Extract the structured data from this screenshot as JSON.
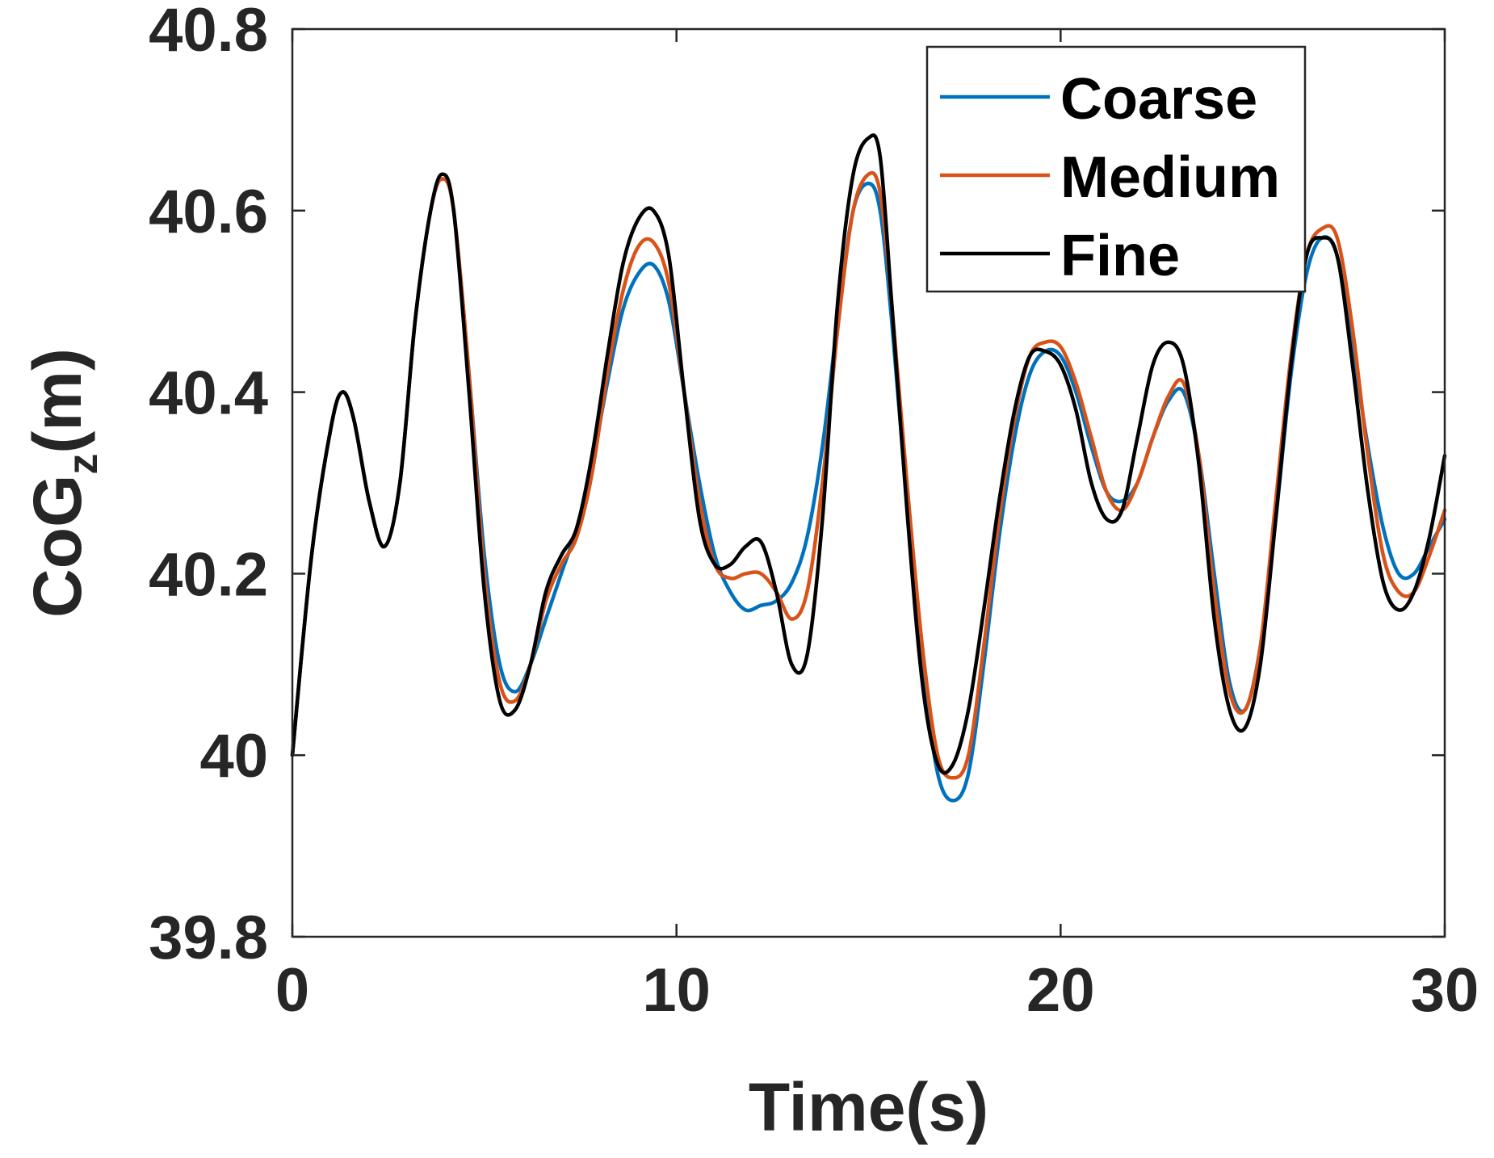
{
  "chart_data": {
    "type": "line",
    "title": "",
    "xlabel": "Time(s)",
    "ylabel": {
      "main": "CoG",
      "sub": "z",
      "unit": "(m)"
    },
    "xlim": [
      0,
      30
    ],
    "ylim": [
      39.8,
      40.8
    ],
    "xticks": [
      0,
      10,
      20,
      30
    ],
    "xtick_labels": [
      "0",
      "10",
      "20",
      "30"
    ],
    "yticks": [
      39.8,
      40.0,
      40.2,
      40.4,
      40.6,
      40.8
    ],
    "ytick_labels": [
      "39.8",
      "40",
      "40.2",
      "40.4",
      "40.6",
      "40.8"
    ],
    "grid": false,
    "legend_position": "top-right",
    "series": [
      {
        "name": "Coarse",
        "color": "#0072BD",
        "x": [
          0,
          0.5,
          1.0,
          1.3,
          1.6,
          2.0,
          2.4,
          2.8,
          3.2,
          3.6,
          3.9,
          4.2,
          4.6,
          5.0,
          5.4,
          5.8,
          6.2,
          6.6,
          7.0,
          7.4,
          7.8,
          8.2,
          8.6,
          9.0,
          9.4,
          9.8,
          10.2,
          10.6,
          11.0,
          11.4,
          11.8,
          12.2,
          12.6,
          13.0,
          13.4,
          13.8,
          14.2,
          14.6,
          15.0,
          15.3,
          15.6,
          16.0,
          16.4,
          16.8,
          17.2,
          17.6,
          18.0,
          18.4,
          18.8,
          19.2,
          19.6,
          20.0,
          20.4,
          20.8,
          21.2,
          21.6,
          22.0,
          22.4,
          22.8,
          23.2,
          23.6,
          24.0,
          24.4,
          24.8,
          25.2,
          25.6,
          26.0,
          26.4,
          26.8,
          27.2,
          27.6,
          28.0,
          28.4,
          28.8,
          29.2,
          29.6,
          30.0
        ],
        "y": [
          40.0,
          40.22,
          40.36,
          40.4,
          40.37,
          40.28,
          40.23,
          40.3,
          40.48,
          40.6,
          40.635,
          40.6,
          40.42,
          40.22,
          40.1,
          40.07,
          40.1,
          40.15,
          40.2,
          40.25,
          40.32,
          40.41,
          40.49,
          40.53,
          40.54,
          40.5,
          40.4,
          40.3,
          40.22,
          40.18,
          40.16,
          40.165,
          40.17,
          40.19,
          40.24,
          40.34,
          40.48,
          40.6,
          40.63,
          40.6,
          40.48,
          40.28,
          40.1,
          39.98,
          39.95,
          39.98,
          40.1,
          40.24,
          40.35,
          40.42,
          40.445,
          40.44,
          40.4,
          40.34,
          40.29,
          40.28,
          40.3,
          40.35,
          40.39,
          40.4,
          40.33,
          40.2,
          40.08,
          40.05,
          40.12,
          40.26,
          40.42,
          40.53,
          40.57,
          40.55,
          40.45,
          40.34,
          40.25,
          40.2,
          40.2,
          40.23,
          40.26
        ]
      },
      {
        "name": "Medium",
        "color": "#D95319",
        "x": [
          0,
          0.5,
          1.0,
          1.3,
          1.6,
          2.0,
          2.4,
          2.8,
          3.2,
          3.6,
          3.9,
          4.2,
          4.6,
          5.0,
          5.4,
          5.8,
          6.2,
          6.6,
          7.0,
          7.4,
          7.8,
          8.2,
          8.6,
          9.0,
          9.4,
          9.8,
          10.2,
          10.6,
          11.0,
          11.4,
          11.8,
          12.2,
          12.6,
          13.0,
          13.4,
          13.8,
          14.2,
          14.6,
          15.0,
          15.3,
          15.6,
          16.0,
          16.4,
          16.8,
          17.2,
          17.6,
          18.0,
          18.4,
          18.8,
          19.2,
          19.6,
          20.0,
          20.4,
          20.8,
          21.2,
          21.6,
          22.0,
          22.4,
          22.8,
          23.2,
          23.6,
          24.0,
          24.4,
          24.8,
          25.2,
          25.6,
          26.0,
          26.4,
          26.8,
          27.2,
          27.6,
          28.0,
          28.4,
          28.8,
          29.2,
          29.6,
          30.0
        ],
        "y": [
          40.0,
          40.22,
          40.36,
          40.4,
          40.37,
          40.28,
          40.23,
          40.3,
          40.48,
          40.6,
          40.635,
          40.6,
          40.42,
          40.2,
          40.08,
          40.06,
          40.1,
          40.17,
          40.21,
          40.24,
          40.31,
          40.42,
          40.51,
          40.56,
          40.565,
          40.52,
          40.4,
          40.28,
          40.21,
          40.195,
          40.2,
          40.2,
          40.18,
          40.15,
          40.18,
          40.3,
          40.47,
          40.6,
          40.64,
          40.62,
          40.5,
          40.3,
          40.12,
          40.0,
          39.975,
          40.0,
          40.12,
          40.26,
          40.37,
          40.44,
          40.455,
          40.45,
          40.41,
          40.35,
          40.29,
          40.27,
          40.3,
          40.35,
          40.395,
          40.41,
          40.33,
          40.18,
          40.07,
          40.05,
          40.12,
          40.28,
          40.44,
          40.55,
          40.58,
          40.57,
          40.47,
          40.33,
          40.22,
          40.18,
          40.18,
          40.22,
          40.27
        ]
      },
      {
        "name": "Fine",
        "color": "#000000",
        "x": [
          0,
          0.5,
          1.0,
          1.3,
          1.6,
          2.0,
          2.4,
          2.8,
          3.2,
          3.6,
          3.9,
          4.2,
          4.6,
          5.0,
          5.4,
          5.8,
          6.2,
          6.6,
          7.0,
          7.4,
          7.8,
          8.2,
          8.6,
          9.0,
          9.4,
          9.8,
          10.2,
          10.6,
          11.0,
          11.4,
          11.8,
          12.2,
          12.6,
          13.0,
          13.4,
          13.8,
          14.2,
          14.6,
          15.0,
          15.3,
          15.6,
          16.0,
          16.4,
          16.8,
          17.2,
          17.6,
          18.0,
          18.4,
          18.8,
          19.2,
          19.6,
          20.0,
          20.4,
          20.8,
          21.2,
          21.6,
          22.0,
          22.4,
          22.8,
          23.2,
          23.6,
          24.0,
          24.4,
          24.8,
          25.2,
          25.6,
          26.0,
          26.4,
          26.8,
          27.2,
          27.6,
          28.0,
          28.4,
          28.8,
          29.2,
          29.6,
          30.0
        ],
        "y": [
          40.0,
          40.22,
          40.36,
          40.4,
          40.37,
          40.28,
          40.23,
          40.3,
          40.48,
          40.6,
          40.64,
          40.6,
          40.4,
          40.18,
          40.06,
          40.05,
          40.1,
          40.18,
          40.22,
          40.25,
          40.33,
          40.44,
          40.54,
          40.59,
          40.6,
          40.55,
          40.4,
          40.26,
          40.21,
          40.21,
          40.23,
          40.235,
          40.18,
          40.1,
          40.11,
          40.26,
          40.5,
          40.64,
          40.68,
          40.66,
          40.5,
          40.27,
          40.08,
          39.99,
          39.99,
          40.05,
          40.16,
          40.28,
          40.38,
          40.44,
          40.445,
          40.43,
          40.38,
          40.3,
          40.26,
          40.27,
          40.35,
          40.43,
          40.455,
          40.43,
          40.32,
          40.15,
          40.05,
          40.03,
          40.1,
          40.26,
          40.43,
          40.55,
          40.57,
          40.55,
          40.43,
          40.29,
          40.19,
          40.16,
          40.18,
          40.24,
          40.33
        ]
      }
    ]
  }
}
